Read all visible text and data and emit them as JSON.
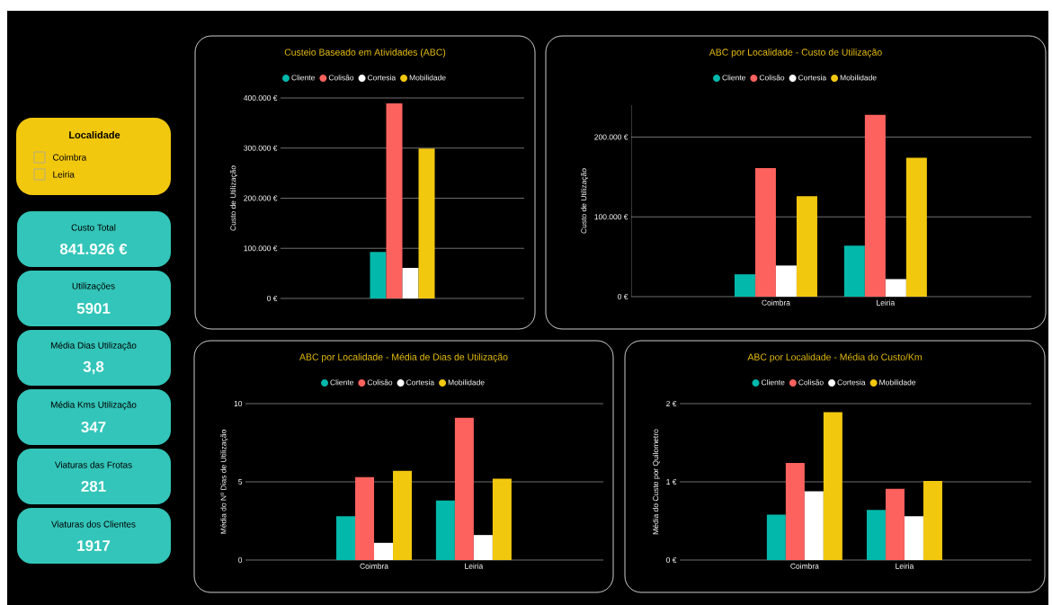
{
  "chart_data": [
    {
      "type": "other",
      "title": "Localidade",
      "categories": [
        "Coimbra",
        "Leiria"
      ]
    },
    {
      "type": "other",
      "categories": [
        "Custo Total",
        "Utilizações",
        "Média Dias Utilização",
        "Média Kms Utilização",
        "Viaturas das Frotas",
        "Viaturas dos Clientes"
      ],
      "annotations": [
        "841.926 €",
        "5901",
        "3,8",
        "347",
        "281",
        "1917"
      ]
    },
    {
      "type": "bar",
      "title": "Custeio Baseado em Atividades (ABC)",
      "ylabel": "Custo de Utilização",
      "categories": [
        null
      ],
      "legend": "top",
      "grid": "y",
      "ylim": [
        0,
        400000
      ],
      "yticks": [
        {
          "value": 0,
          "label": "0 €"
        },
        {
          "value": 100000,
          "label": "100.000 €"
        },
        {
          "value": 200000,
          "label": "200.000 €"
        },
        {
          "value": 300000,
          "label": "300.000 €"
        },
        {
          "value": 400000,
          "label": "400.000 €"
        }
      ],
      "series": [
        {
          "name": "Cliente",
          "color": "#01b8aa",
          "values": [
            93000
          ]
        },
        {
          "name": "Colisão",
          "color": "#fd625e",
          "values": [
            389000
          ]
        },
        {
          "name": "Cortesia",
          "color": "#ffffff",
          "values": [
            61000
          ]
        },
        {
          "name": "Mobilidade",
          "color": "#f2c80f",
          "values": [
            299000
          ]
        }
      ]
    },
    {
      "type": "bar",
      "title": "ABC por Localidade - Custo de Utilização",
      "ylabel": "Custo de Utilização",
      "categories": [
        "Coimbra",
        "Leiria"
      ],
      "legend": "top",
      "grid": "y",
      "ylim": [
        0,
        240000
      ],
      "yticks": [
        {
          "value": 0,
          "label": "0 €"
        },
        {
          "value": 100000,
          "label": "100.000 €"
        },
        {
          "value": 200000,
          "label": "200.000 €"
        }
      ],
      "series": [
        {
          "name": "Cliente",
          "color": "#01b8aa",
          "values": [
            28000,
            64000
          ]
        },
        {
          "name": "Colisão",
          "color": "#fd625e",
          "values": [
            161000,
            228000
          ]
        },
        {
          "name": "Cortesia",
          "color": "#ffffff",
          "values": [
            39000,
            22000
          ]
        },
        {
          "name": "Mobilidade",
          "color": "#f2c80f",
          "values": [
            126000,
            174000
          ]
        }
      ]
    },
    {
      "type": "bar",
      "title": "ABC por Localidade - Média de Dias de Utilização",
      "ylabel": "Média do Nº Dias de Utilização",
      "categories": [
        "Coimbra",
        "Leiria"
      ],
      "legend": "top",
      "grid": "y",
      "ylim": [
        0,
        10
      ],
      "yticks": [
        0,
        5,
        10
      ],
      "series": [
        {
          "name": "Cliente",
          "color": "#01b8aa",
          "values": [
            2.8,
            3.8
          ]
        },
        {
          "name": "Colisão",
          "color": "#fd625e",
          "values": [
            5.3,
            9.1
          ]
        },
        {
          "name": "Cortesia",
          "color": "#ffffff",
          "values": [
            1.1,
            1.6
          ]
        },
        {
          "name": "Mobilidade",
          "color": "#f2c80f",
          "values": [
            5.7,
            5.2
          ]
        }
      ]
    },
    {
      "type": "bar",
      "title": "ABC por Localidade - Média do Custo/Km",
      "ylabel": "Média do Custo por Quilometro",
      "categories": [
        "Coimbra",
        "Leiria"
      ],
      "legend": "top",
      "grid": "y",
      "ylim": [
        0,
        2
      ],
      "yticks": [
        {
          "value": 0,
          "label": "0 €"
        },
        {
          "value": 1,
          "label": "1 €"
        },
        {
          "value": 2,
          "label": "2 €"
        }
      ],
      "series": [
        {
          "name": "Cliente",
          "color": "#01b8aa",
          "values": [
            0.58,
            0.64
          ]
        },
        {
          "name": "Colisão",
          "color": "#fd625e",
          "values": [
            1.24,
            0.91
          ]
        },
        {
          "name": "Cortesia",
          "color": "#ffffff",
          "values": [
            0.88,
            0.56
          ]
        },
        {
          "name": "Mobilidade",
          "color": "#f2c80f",
          "values": [
            1.89,
            1.01
          ]
        }
      ]
    }
  ]
}
